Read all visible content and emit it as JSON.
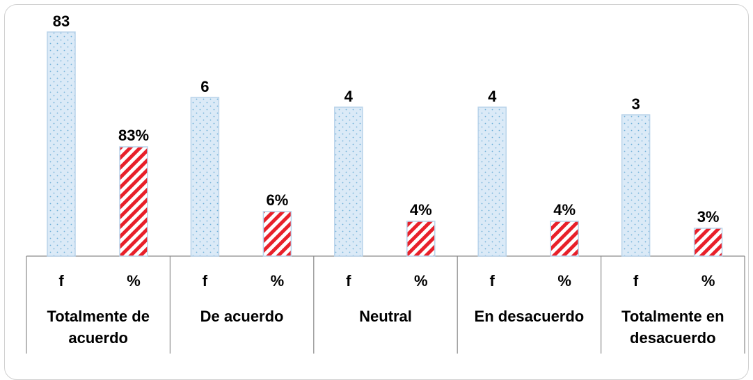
{
  "chart_data": {
    "type": "bar",
    "categories": [
      "Totalmente de acuerdo",
      "De acuerdo",
      "Neutral",
      "En desacuerdo",
      "Totalmente en desacuerdo"
    ],
    "series": [
      {
        "name": "f",
        "values": [
          83,
          6,
          4,
          4,
          3
        ],
        "data_labels": [
          "83",
          "6",
          "4",
          "4",
          "3"
        ]
      },
      {
        "name": "%",
        "values": [
          83,
          6,
          4,
          4,
          3
        ],
        "data_labels": [
          "83%",
          "6%",
          "4%",
          "4%",
          "3%"
        ]
      }
    ],
    "category_label_lines": [
      [
        "Totalmente de",
        "acuerdo"
      ],
      [
        "De acuerdo"
      ],
      [
        "Neutral"
      ],
      [
        "En desacuerdo"
      ],
      [
        "Totalmente en",
        "desacuerdo"
      ]
    ],
    "colors": {
      "f_fill": "#dbeaf7",
      "f_dots": "#6fb0d8",
      "f_edge": "#b9d3ea",
      "pct_stripe_a": "#e8202a",
      "pct_stripe_b": "#ffffff",
      "pct_edge": "#b9d3ea"
    },
    "legend": "none",
    "grid": false
  }
}
